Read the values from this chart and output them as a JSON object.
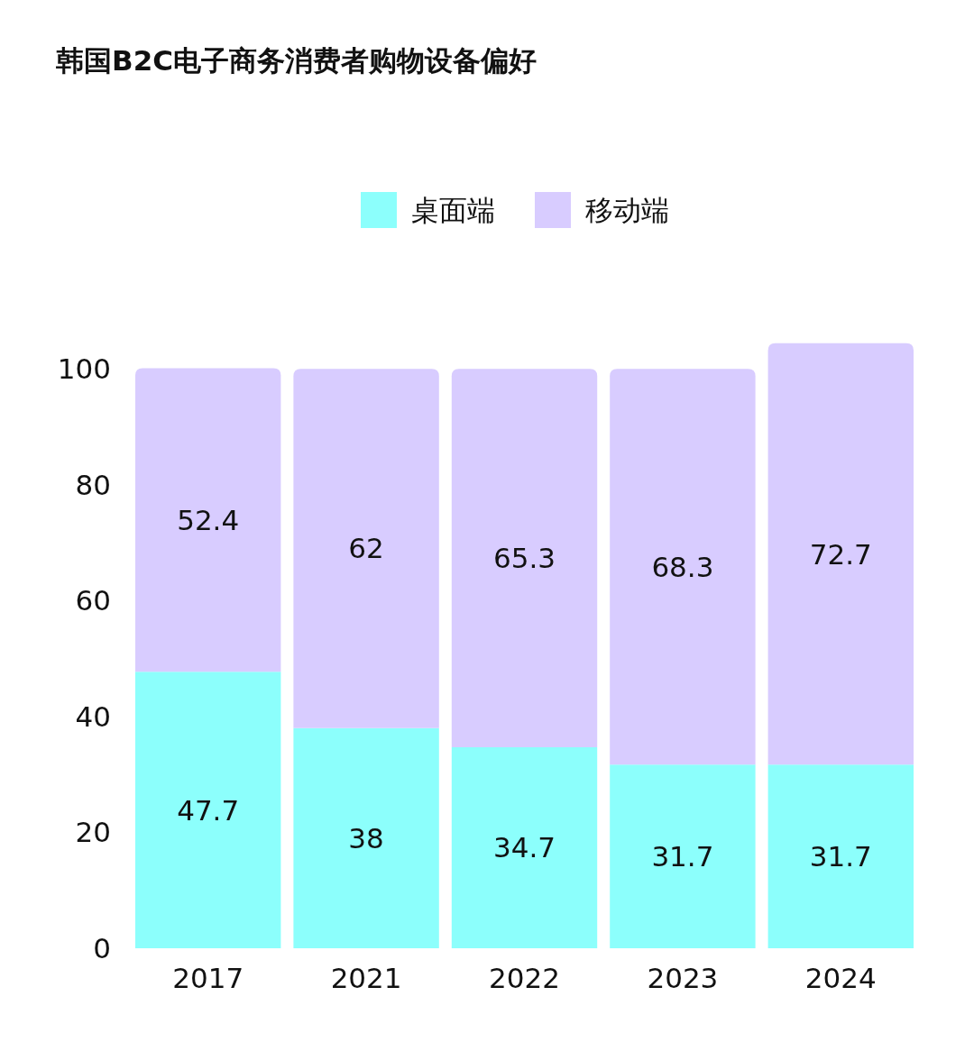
{
  "chart_data": {
    "type": "bar",
    "stacked": true,
    "title": "韩国B2C电子商务消费者购物设备偏好",
    "categories": [
      "2017",
      "2021",
      "2022",
      "2023",
      "2024"
    ],
    "series": [
      {
        "name": "桌面端",
        "color": "#8cfffc",
        "values": [
          47.7,
          38,
          34.7,
          31.7,
          31.7
        ]
      },
      {
        "name": "移动端",
        "color": "#d8ccff",
        "values": [
          52.4,
          62,
          65.3,
          68.3,
          72.7
        ]
      }
    ],
    "ylim": [
      0,
      105
    ],
    "yticks": [
      0,
      20,
      40,
      60,
      80,
      100
    ],
    "legend": "top",
    "data_labels": true
  }
}
